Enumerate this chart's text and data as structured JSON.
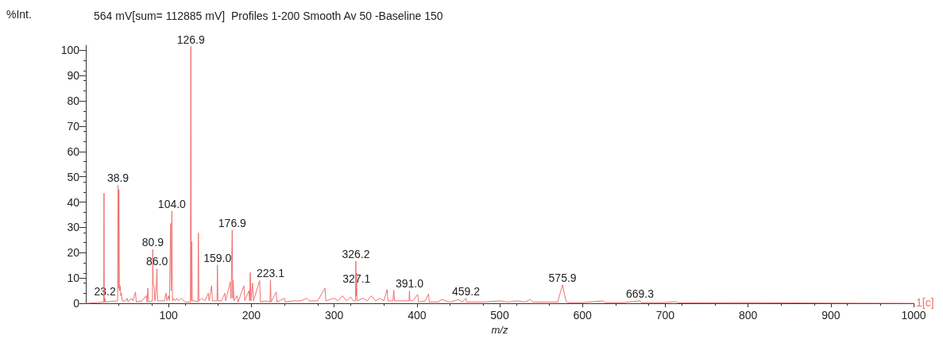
{
  "chart_data": {
    "type": "line",
    "title": "564 mV[sum= 112885 mV]  Profiles 1-200 Smooth Av 50 -Baseline 150",
    "ylabel": "%Int.",
    "xlabel": "m/z",
    "xlim": [
      0,
      1000
    ],
    "xticks": [
      100,
      200,
      300,
      400,
      500,
      600,
      700,
      800,
      900,
      1000
    ],
    "ylim": [
      0,
      102
    ],
    "yticks": [
      0,
      10,
      20,
      30,
      40,
      50,
      60,
      70,
      80,
      90,
      100
    ],
    "grid": false,
    "marker": "none",
    "line_style": "solid",
    "series": [
      {
        "color": "#f07070",
        "x": [
          0,
          15,
          21.7,
          22,
          22.3,
          23.2,
          23.6,
          38.5,
          38.9,
          39.4,
          40,
          40.6,
          41.5,
          42.3,
          43,
          44,
          48,
          50,
          51,
          55,
          57,
          60,
          61,
          68,
          73,
          74,
          75,
          76,
          80.5,
          80.9,
          81.5,
          82.5,
          83.5,
          85,
          86,
          86.6,
          90,
          95,
          97,
          98,
          100,
          101,
          102.5,
          103.2,
          104,
          104.7,
          106,
          108,
          110,
          112,
          115,
          120,
          126.4,
          126.9,
          127.5,
          128,
          128.6,
          132,
          135.4,
          136,
          136.6,
          140,
          144,
          148,
          149,
          152,
          153,
          158.5,
          159,
          159.6,
          164,
          168,
          169,
          174.5,
          175.5,
          176.9,
          177.5,
          178,
          179,
          183,
          184,
          191,
          192,
          197,
          198,
          198.7,
          199.5,
          201.5,
          202.5,
          210,
          211,
          216,
          222.5,
          223.1,
          223.8,
          230,
          231,
          240,
          241,
          250,
          260,
          267,
          270,
          280,
          289,
          290,
          295,
          300,
          305,
          310,
          315,
          320,
          323,
          325.8,
          326.2,
          326.7,
          327.1,
          327.6,
          335,
          340,
          345,
          350,
          355,
          360,
          364,
          365,
          371,
          372,
          373,
          380,
          390.5,
          391,
          391.6,
          395,
          401,
          402,
          410,
          414,
          415,
          425,
          430,
          440,
          450,
          455,
          459.2,
          460,
          480,
          500,
          510,
          522,
          530,
          537,
          540,
          570,
          573,
          575.9,
          578,
          580,
          582,
          600,
          625,
          627,
          650,
          669.3,
          671,
          700,
          713,
          715,
          800,
          900,
          1000
        ],
        "values": [
          0,
          0.3,
          0.5,
          43.5,
          0.5,
          2,
          0.5,
          1,
          46.7,
          6,
          45,
          5,
          7,
          3,
          4,
          1,
          1,
          2,
          0.5,
          2,
          1,
          4.5,
          0.5,
          1,
          3,
          0.5,
          6,
          0.5,
          1,
          21.3,
          7,
          7,
          1,
          6,
          13.7,
          1,
          1,
          1,
          4,
          1,
          3,
          1,
          31.6,
          5,
          36.5,
          1,
          2,
          1,
          2,
          1,
          2,
          0.5,
          0.5,
          101.5,
          1,
          24.3,
          1,
          1,
          0.5,
          27.8,
          1,
          2,
          1,
          4,
          1,
          7,
          1,
          1,
          15.2,
          1,
          1,
          4,
          1,
          8.5,
          2,
          29,
          2,
          9,
          1,
          3,
          0.5,
          7,
          1,
          5,
          1,
          12.2,
          1,
          8,
          1,
          9,
          0.5,
          1,
          0.5,
          9.2,
          0.5,
          4.5,
          0.5,
          2,
          0.5,
          1,
          1,
          2,
          1,
          1,
          6,
          1,
          1.5,
          2,
          1,
          3,
          1,
          2.5,
          1,
          1,
          16.7,
          3,
          12,
          1,
          2,
          1,
          3,
          1,
          2,
          1,
          5.5,
          1,
          1,
          5.3,
          1,
          1,
          1,
          5,
          1,
          1,
          3.5,
          0.5,
          1,
          3.7,
          0.5,
          0.5,
          1.5,
          0.5,
          1.5,
          0.5,
          2,
          0.5,
          0.5,
          1,
          0.5,
          1,
          0.5,
          1.5,
          0.5,
          0.5,
          4,
          7.3,
          4,
          1,
          0.3,
          0.3,
          1,
          0.3,
          0.3,
          1,
          0.3,
          0.3,
          0.7,
          0.2,
          0.3,
          0.1,
          0
        ]
      }
    ],
    "annotations": [
      {
        "text": "23.2",
        "x": 23.2,
        "y": 2
      },
      {
        "text": "38.9",
        "x": 38.9,
        "y": 46.7
      },
      {
        "text": "80.9",
        "x": 80.9,
        "y": 21.3
      },
      {
        "text": "86.0",
        "x": 86,
        "y": 13.7
      },
      {
        "text": "104.0",
        "x": 104,
        "y": 36.5
      },
      {
        "text": "126.9",
        "x": 126.9,
        "y": 101.5
      },
      {
        "text": "159.0",
        "x": 159,
        "y": 15.2
      },
      {
        "text": "176.9",
        "x": 176.9,
        "y": 29
      },
      {
        "text": "223.1",
        "x": 223.1,
        "y": 9.2
      },
      {
        "text": "326.2",
        "x": 326.2,
        "y": 16.7
      },
      {
        "text": "327.1",
        "x": 327.1,
        "y": 7
      },
      {
        "text": "391.0",
        "x": 391,
        "y": 5
      },
      {
        "text": "459.2",
        "x": 459.2,
        "y": 2
      },
      {
        "text": "575.9",
        "x": 575.9,
        "y": 7.3
      },
      {
        "text": "669.3",
        "x": 669.3,
        "y": 1
      },
      "1[c]"
    ]
  }
}
